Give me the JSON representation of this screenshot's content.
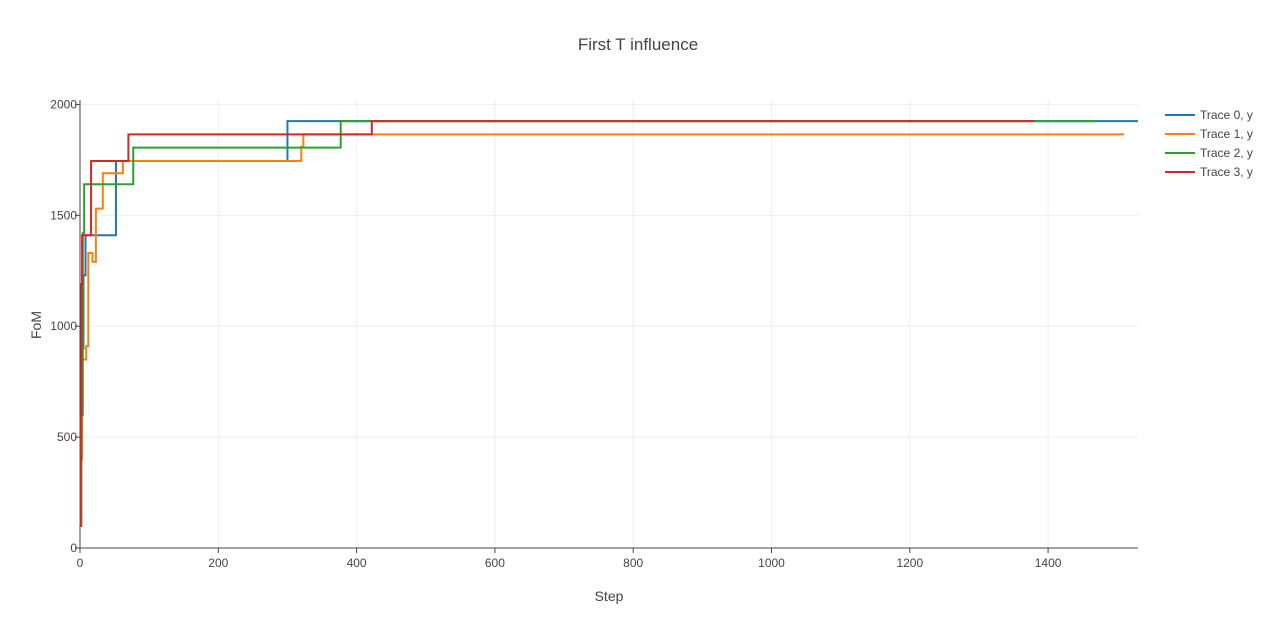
{
  "chart_data": {
    "type": "line",
    "line_shape": "step",
    "title": "First T influence",
    "xlabel": "Step",
    "ylabel": "FoM",
    "xlim": [
      0,
      1530
    ],
    "ylim": [
      0,
      2020
    ],
    "x_ticks": [
      0,
      200,
      400,
      600,
      800,
      1000,
      1200,
      1400
    ],
    "y_ticks": [
      0,
      500,
      1000,
      1500,
      2000
    ],
    "grid": true,
    "legend_position": "top-right",
    "series": [
      {
        "name": "Trace 0, y",
        "color": "#1f77b4",
        "x": [
          0,
          1,
          3,
          5,
          8,
          50,
          52,
          298,
          300,
          1530
        ],
        "y": [
          120,
          500,
          900,
          1230,
          1410,
          1410,
          1745,
          1745,
          1925,
          1925
        ]
      },
      {
        "name": "Trace 1, y",
        "color": "#ff7f0e",
        "x": [
          0,
          1,
          3,
          6,
          9,
          12,
          18,
          23,
          28,
          33,
          45,
          50,
          62,
          68,
          320,
          323,
          1510
        ],
        "y": [
          100,
          400,
          850,
          850,
          910,
          1330,
          1290,
          1530,
          1530,
          1690,
          1690,
          1690,
          1745,
          1745,
          1810,
          1865,
          1865
        ]
      },
      {
        "name": "Trace 2, y",
        "color": "#2ca02c",
        "x": [
          0,
          2,
          4,
          6,
          73,
          77,
          375,
          377,
          1470
        ],
        "y": [
          100,
          600,
          1420,
          1640,
          1640,
          1805,
          1805,
          1925,
          1925
        ]
      },
      {
        "name": "Trace 3, y",
        "color": "#d62728",
        "x": [
          0,
          1,
          2,
          3,
          14,
          16,
          67,
          70,
          420,
          422,
          1380
        ],
        "y": [
          100,
          600,
          1190,
          1410,
          1410,
          1745,
          1745,
          1865,
          1865,
          1925,
          1925
        ]
      }
    ]
  }
}
